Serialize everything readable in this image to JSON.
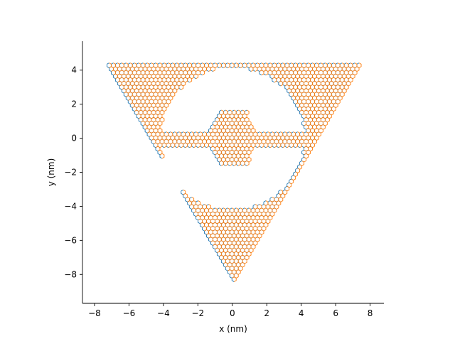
{
  "chart_data": {
    "type": "scatter",
    "title": "",
    "xlabel": "x (nm)",
    "ylabel": "y (nm)",
    "xlim": [
      -8.7,
      8.8
    ],
    "ylim": [
      -9.7,
      5.7
    ],
    "xticks": [
      -8,
      -6,
      -4,
      -2,
      0,
      2,
      4,
      6,
      8
    ],
    "yticks": [
      -8,
      -6,
      -4,
      -2,
      0,
      2,
      4
    ],
    "xtick_labels": [
      "−8",
      "−6",
      "−4",
      "−2",
      "0",
      "2",
      "4",
      "6",
      "8"
    ],
    "ytick_labels": [
      "−8",
      "−6",
      "−4",
      "−2",
      "0",
      "2",
      "4"
    ],
    "grid": false,
    "aspect": "equal",
    "spines": [
      "left",
      "bottom"
    ],
    "lattice": {
      "kind": "honeycomb",
      "bond_length_nm": 0.142
    },
    "shape": {
      "triangle_vertices": [
        [
          -7.4,
          4.3
        ],
        [
          7.4,
          4.3
        ],
        [
          0.0,
          -8.5
        ]
      ],
      "circular_hole": {
        "center": [
          0.0,
          0.0
        ],
        "radius": 4.2
      },
      "horizontal_bridge": {
        "x_range": [
          -4.6,
          4.6
        ],
        "y_range": [
          -0.5,
          0.4
        ]
      },
      "central_hexagon": {
        "center": [
          0.0,
          0.0
        ],
        "half_width": 1.6,
        "half_height": 1.6
      }
    },
    "series": [
      {
        "color": "#1f77b4"
      },
      {
        "color": "#ff7f0e"
      }
    ]
  }
}
